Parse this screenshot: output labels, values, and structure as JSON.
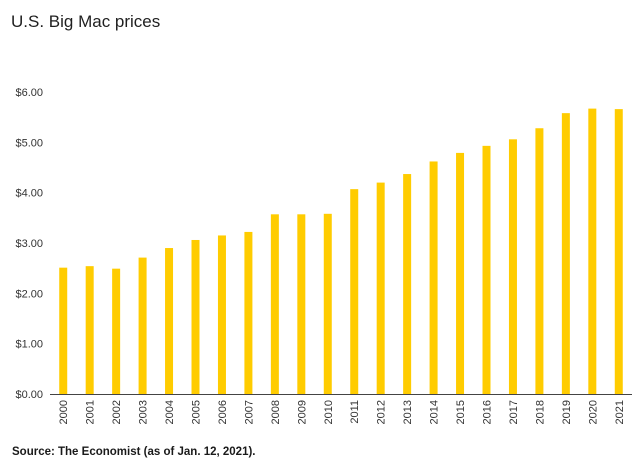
{
  "chart_data": {
    "type": "bar",
    "title": "U.S. Big Mac prices",
    "xlabel": "",
    "ylabel": "",
    "categories": [
      "2000",
      "2001",
      "2002",
      "2003",
      "2004",
      "2005",
      "2006",
      "2007",
      "2008",
      "2009",
      "2010",
      "2011",
      "2012",
      "2013",
      "2014",
      "2015",
      "2016",
      "2017",
      "2018",
      "2019",
      "2020",
      "2021"
    ],
    "values": [
      2.51,
      2.54,
      2.49,
      2.71,
      2.9,
      3.06,
      3.15,
      3.22,
      3.57,
      3.57,
      3.58,
      4.07,
      4.2,
      4.37,
      4.62,
      4.79,
      4.93,
      5.06,
      5.28,
      5.58,
      5.67,
      5.66
    ],
    "ylim": [
      0,
      6
    ],
    "yticks": [
      0,
      1,
      2,
      3,
      4,
      5,
      6
    ],
    "ytick_labels": [
      "$0.00",
      "$1.00",
      "$2.00",
      "$3.00",
      "$4.00",
      "$5.00",
      "$6.00"
    ],
    "grid": false,
    "bar_color": "#FFCC00",
    "axis_color": "#444444",
    "source": "Source: The Economist (as of Jan. 12, 2021)."
  }
}
